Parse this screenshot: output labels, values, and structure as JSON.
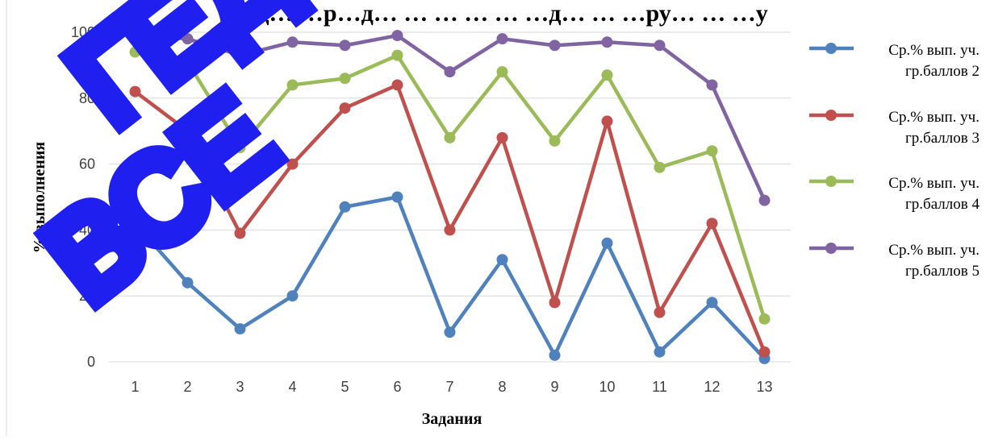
{
  "chart_data": {
    "type": "line",
    "title": "…д… …р…д… … … … … …д… … …ру… … …у",
    "xlabel": "Задания",
    "ylabel": "% выполнения",
    "ylim": [
      0,
      100
    ],
    "yticks": [
      0,
      20,
      40,
      60,
      80,
      100
    ],
    "categories": [
      "1",
      "2",
      "3",
      "4",
      "5",
      "6",
      "7",
      "8",
      "9",
      "10",
      "11",
      "12",
      "13"
    ],
    "grid": true,
    "legend_position": "right",
    "series": [
      {
        "name": "Ср.% вып. уч. гр.баллов 2",
        "color": "#4f81bd",
        "values": [
          42,
          24,
          10,
          20,
          47,
          50,
          9,
          31,
          2,
          36,
          3,
          18,
          1
        ]
      },
      {
        "name": "Ср.% вып. уч. гр.баллов 3",
        "color": "#c0504d",
        "values": [
          82,
          70,
          39,
          60,
          77,
          84,
          40,
          68,
          18,
          73,
          15,
          42,
          3
        ]
      },
      {
        "name": "Ср.% вып. уч. гр.баллов 4",
        "color": "#9bbb59",
        "values": [
          94,
          91,
          65,
          84,
          86,
          93,
          68,
          88,
          67,
          87,
          59,
          64,
          13
        ]
      },
      {
        "name": "Ср.% вып. уч. гр.баллов 5",
        "color": "#8064a2",
        "values": [
          99,
          98,
          93,
          97,
          96,
          99,
          88,
          98,
          96,
          97,
          96,
          84,
          49
        ]
      }
    ]
  },
  "watermark": {
    "line1": "ГЕДЕПРАУ",
    "line2": "ВСЕ",
    "color": "#1f1ff0"
  }
}
